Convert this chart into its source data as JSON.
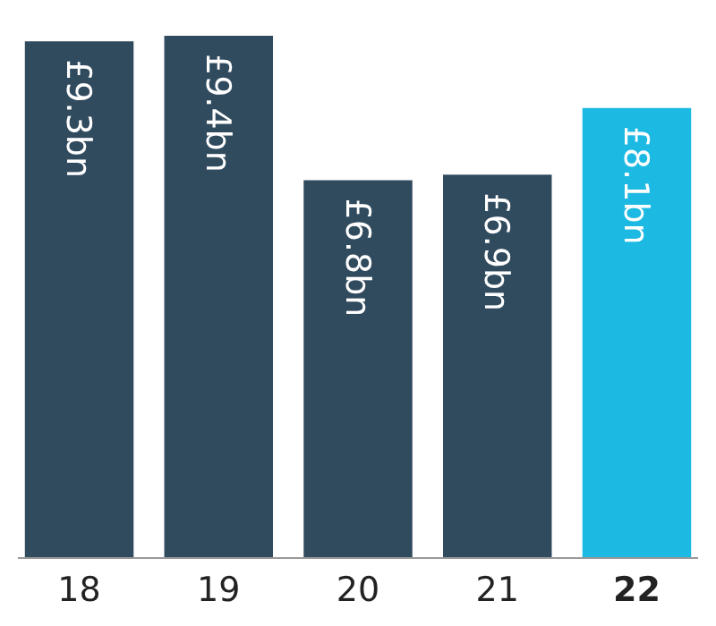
{
  "chart_data": {
    "type": "bar",
    "relative": false,
    "categories": [
      "18",
      "19",
      "20",
      "21",
      "22"
    ],
    "values": [
      9.3,
      9.4,
      6.8,
      6.9,
      8.1
    ],
    "colors": [
      "#304a5e",
      "#304a5e",
      "#304a5e",
      "#304a5e",
      "#1cb9e2"
    ],
    "value_labels": [
      "£9.3bn",
      "£9.4bn",
      "£6.8bn",
      "£6.9bn",
      "£8.1bn"
    ]
  }
}
